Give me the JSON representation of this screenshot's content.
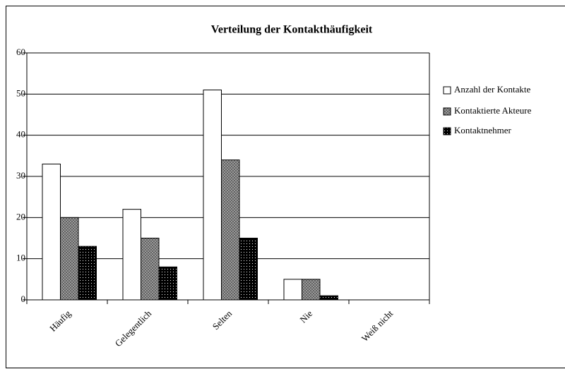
{
  "chart_data": {
    "type": "bar",
    "title": "Verteilung der Kontakthäufigkeit",
    "categories": [
      "Häufig",
      "Gelegentlich",
      "Selten",
      "Nie",
      "Weiß nicht"
    ],
    "series": [
      {
        "name": "Anzahl der Kontakte",
        "color": "#ffffff",
        "values": [
          33,
          22,
          51,
          5,
          0
        ]
      },
      {
        "name": "Kontaktierte Akteure",
        "color": "#a8a8a8",
        "values": [
          20,
          15,
          34,
          5,
          0
        ]
      },
      {
        "name": "Kontaktnehmer",
        "color": "#000000",
        "values": [
          13,
          8,
          15,
          1,
          0
        ]
      }
    ],
    "ylim": [
      0,
      60
    ],
    "yticks": [
      0,
      10,
      20,
      30,
      40,
      50,
      60
    ],
    "grid": true,
    "legend": "right"
  }
}
